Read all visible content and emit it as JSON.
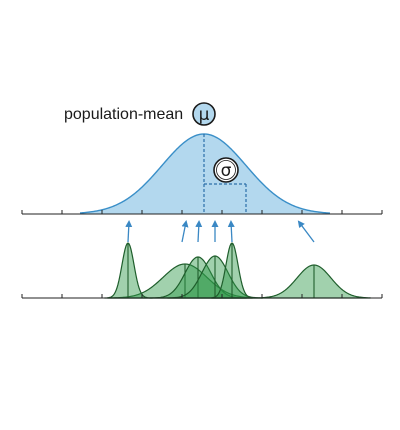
{
  "population_label": "population-mean",
  "mu_symbol": "μ",
  "sigma_symbol": "σ",
  "colors": {
    "population_fill": "#b3d8ee",
    "population_stroke": "#3a8fc8",
    "sample_fill": "#2e9a4a",
    "sample_stroke": "#1f5e2c",
    "arrow": "#3a88c4",
    "axis": "#222222",
    "symbol_circle": "#b3d8ee"
  },
  "icons": {
    "mu": "mu-symbol-icon",
    "sigma": "sigma-symbol-icon"
  }
}
